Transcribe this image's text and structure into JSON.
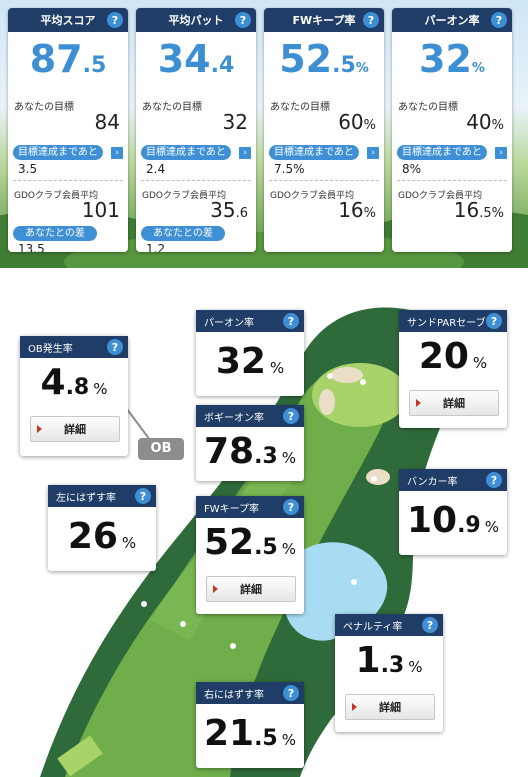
{
  "stats": [
    {
      "title": "平均スコア",
      "big_int": "87",
      "big_dec": ".5",
      "big_unit": "",
      "goal_label": "あなたの目標",
      "goal_int": "84",
      "goal_dec": "",
      "goal_unit": "",
      "progress_label": "目標達成まであと",
      "progress_value": "3.5",
      "avg_label": "GDOクラブ会員平均",
      "avg_int": "101",
      "avg_dec": "",
      "avg_unit": "",
      "diff_label": "あなたとの差",
      "diff_value": "13.5"
    },
    {
      "title": "平均パット",
      "big_int": "34",
      "big_dec": ".4",
      "big_unit": "",
      "goal_label": "あなたの目標",
      "goal_int": "32",
      "goal_dec": "",
      "goal_unit": "",
      "progress_label": "目標達成まであと",
      "progress_value": "2.4",
      "avg_label": "GDOクラブ会員平均",
      "avg_int": "35",
      "avg_dec": ".6",
      "avg_unit": "",
      "diff_label": "あなたとの差",
      "diff_value": "1.2"
    },
    {
      "title": "FWキープ率",
      "big_int": "52",
      "big_dec": ".5",
      "big_unit": "%",
      "goal_label": "あなたの目標",
      "goal_int": "60",
      "goal_dec": "",
      "goal_unit": "%",
      "progress_label": "目標達成まであと",
      "progress_value": "7.5%",
      "avg_label": "GDOクラブ会員平均",
      "avg_int": "16",
      "avg_dec": "",
      "avg_unit": "%"
    },
    {
      "title": "パーオン率",
      "big_int": "32",
      "big_dec": "",
      "big_unit": "%",
      "goal_label": "あなたの目標",
      "goal_int": "40",
      "goal_dec": "",
      "goal_unit": "%",
      "progress_label": "目標達成まであと",
      "progress_value": "8%",
      "avg_label": "GDOクラブ会員平均",
      "avg_int": "16",
      "avg_dec": ".5",
      "avg_unit": "%"
    }
  ],
  "help_glyph": "?",
  "arrow_glyph": "›",
  "course": {
    "ob_label": "OB",
    "cards": {
      "ob": {
        "title": "OB発生率",
        "int": "4",
        "dec": ".8",
        "unit": "%",
        "button": "詳細"
      },
      "par_on": {
        "title": "パーオン率",
        "int": "32",
        "dec": "",
        "unit": "%"
      },
      "sand": {
        "title": "サンドPARセーブ",
        "int": "20",
        "dec": "",
        "unit": "%",
        "button": "詳細"
      },
      "bogey_on": {
        "title": "ボギーオン率",
        "int": "78",
        "dec": ".3",
        "unit": "%"
      },
      "left": {
        "title": "左にはずす率",
        "int": "26",
        "dec": "",
        "unit": "%"
      },
      "fw": {
        "title": "FWキープ率",
        "int": "52",
        "dec": ".5",
        "unit": "%",
        "button": "詳細"
      },
      "bunker": {
        "title": "バンカー率",
        "int": "10",
        "dec": ".9",
        "unit": "%"
      },
      "penalty": {
        "title": "ペナルティ率",
        "int": "1",
        "dec": ".3",
        "unit": "%",
        "button": "詳細"
      },
      "right": {
        "title": "右にはずす率",
        "int": "21",
        "dec": ".5",
        "unit": "%"
      }
    }
  },
  "colors": {
    "header": "#1f3d66",
    "accent": "#3d8fd4",
    "fairway": "#6fae4a",
    "rough": "#2f6b3a",
    "green": "#a7d36a",
    "water": "#a8dcf3",
    "sand": "#eadfc6"
  }
}
